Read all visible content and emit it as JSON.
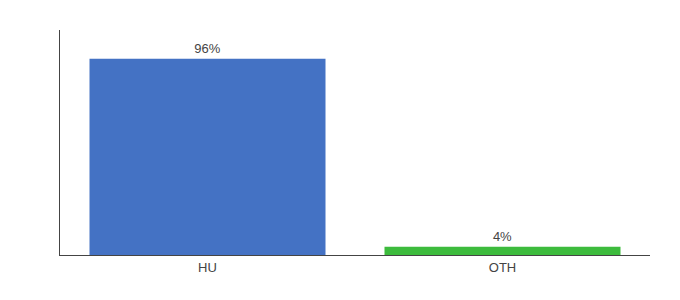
{
  "chart_data": {
    "type": "bar",
    "categories": [
      "HU",
      "OTH"
    ],
    "values": [
      96,
      4
    ],
    "value_labels": [
      "96%",
      "4%"
    ],
    "data_labels": true,
    "colors": [
      "#4472c4",
      "#3dbb3d"
    ],
    "ylim": [
      0,
      110
    ],
    "tick_labels": "x",
    "grid": false
  }
}
